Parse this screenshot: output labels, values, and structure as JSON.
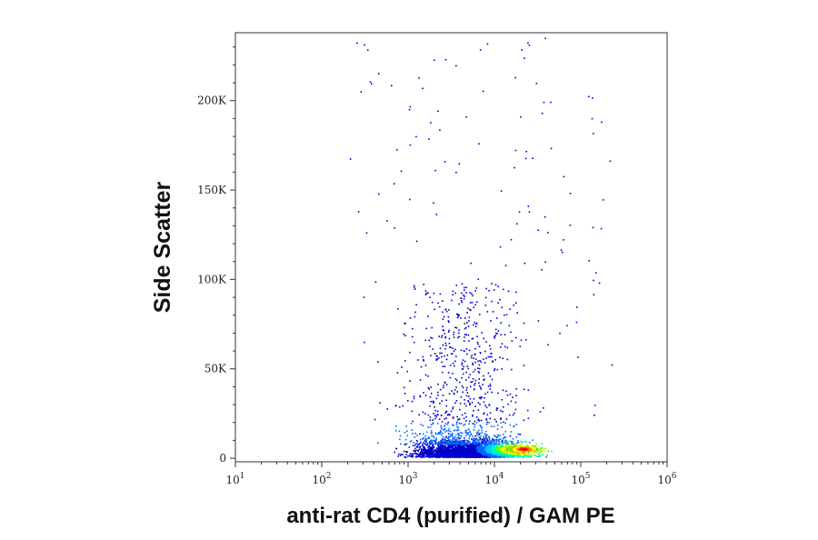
{
  "chart_data": {
    "type": "scatter",
    "subtype": "flow-cytometry density dot plot",
    "xlabel": "anti-rat CD4 (purified) / GAM PE",
    "ylabel": "Side Scatter",
    "x_scale": "log",
    "xlim": [
      10,
      1000000
    ],
    "ylim": [
      -2000,
      238000
    ],
    "x_ticks": [
      {
        "base": "10",
        "exp": "1",
        "value": 10
      },
      {
        "base": "10",
        "exp": "2",
        "value": 100
      },
      {
        "base": "10",
        "exp": "3",
        "value": 1000
      },
      {
        "base": "10",
        "exp": "4",
        "value": 10000
      },
      {
        "base": "10",
        "exp": "5",
        "value": 100000
      },
      {
        "base": "10",
        "exp": "6",
        "value": 1000000
      }
    ],
    "y_ticks": [
      {
        "label": "0",
        "value": 0
      },
      {
        "label": "50K",
        "value": 50000
      },
      {
        "label": "100K",
        "value": 100000
      },
      {
        "label": "150K",
        "value": 150000
      },
      {
        "label": "200K",
        "value": 200000
      }
    ],
    "color_scale": [
      "#0000cc",
      "#0066ff",
      "#00ccff",
      "#00ffaa",
      "#66ff00",
      "#ffff00",
      "#ff8800",
      "#ff0000"
    ],
    "density_peak": {
      "x": 22000,
      "y": 5000
    },
    "population_summary": {
      "main_cluster_x_range": [
        300,
        60000
      ],
      "main_cluster_y_range": [
        0,
        20000
      ],
      "scattered_x_range": [
        100,
        300000
      ],
      "scattered_y_range": [
        20000,
        235000
      ]
    },
    "grid": false,
    "legend": "none"
  }
}
